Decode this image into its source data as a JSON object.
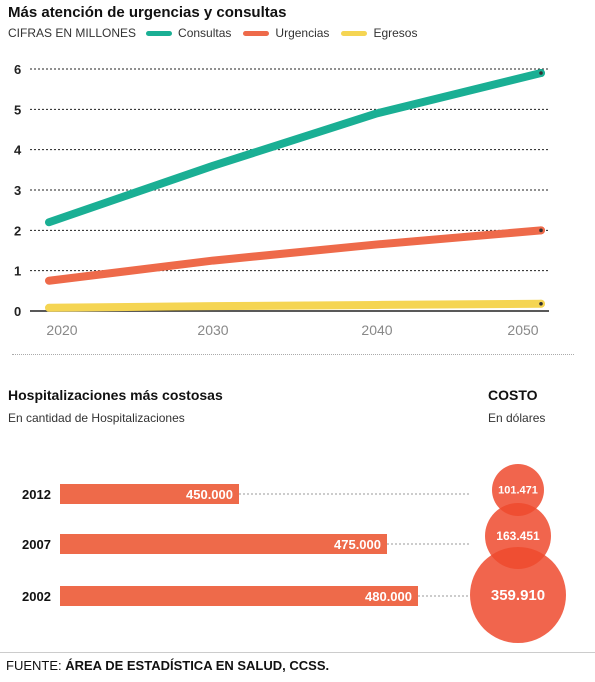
{
  "top": {
    "title": "Más atención de urgencias y consultas",
    "unit_label": "CIFRAS EN MILLONES",
    "legend": [
      {
        "name": "Consultas",
        "color": "#1aaf94"
      },
      {
        "name": "Urgencias",
        "color": "#ee6a4a"
      },
      {
        "name": "Egresos",
        "color": "#f5d553"
      }
    ]
  },
  "bottom": {
    "title": "Hospitalizaciones más costosas",
    "subtitle": "En cantidad de Hospitalizaciones",
    "costo_title": "COSTO",
    "costo_subtitle": "En dólares"
  },
  "footer": {
    "prefix": "FUENTE: ",
    "source": "ÁREA DE ESTADÍSTICA EN SALUD, CCSS."
  },
  "chart_data": [
    {
      "type": "line",
      "title": "Más atención de urgencias y consultas",
      "ylabel": "CIFRAS EN MILLONES",
      "x": [
        2020,
        2030,
        2040,
        2050
      ],
      "xlim": [
        2020,
        2050
      ],
      "ylim": [
        0,
        6
      ],
      "yticks": [
        0,
        1,
        2,
        3,
        4,
        5,
        6
      ],
      "grid": true,
      "series": [
        {
          "name": "Consultas",
          "color": "#1aaf94",
          "values": [
            2.2,
            3.6,
            4.9,
            5.9
          ]
        },
        {
          "name": "Urgencias",
          "color": "#ee6a4a",
          "values": [
            0.75,
            1.25,
            1.65,
            2.0
          ]
        },
        {
          "name": "Egresos",
          "color": "#f5d553",
          "values": [
            0.08,
            0.12,
            0.15,
            0.18
          ]
        }
      ]
    },
    {
      "type": "bar",
      "title": "Hospitalizaciones más costosas",
      "subtitle": "En cantidad de Hospitalizaciones",
      "categories": [
        "2012",
        "2007",
        "2002"
      ],
      "values": [
        450000,
        475000,
        480000
      ],
      "value_labels": [
        "450.000",
        "475.000",
        "480.000"
      ],
      "color": "#ee6a4a"
    },
    {
      "type": "bubble",
      "title": "COSTO",
      "subtitle": "En dólares",
      "categories": [
        "2012",
        "2007",
        "2002"
      ],
      "values": [
        101471,
        163451,
        359910
      ],
      "value_labels": [
        "101.471",
        "163.451",
        "359.910"
      ],
      "color": "#ee4a2e"
    }
  ]
}
